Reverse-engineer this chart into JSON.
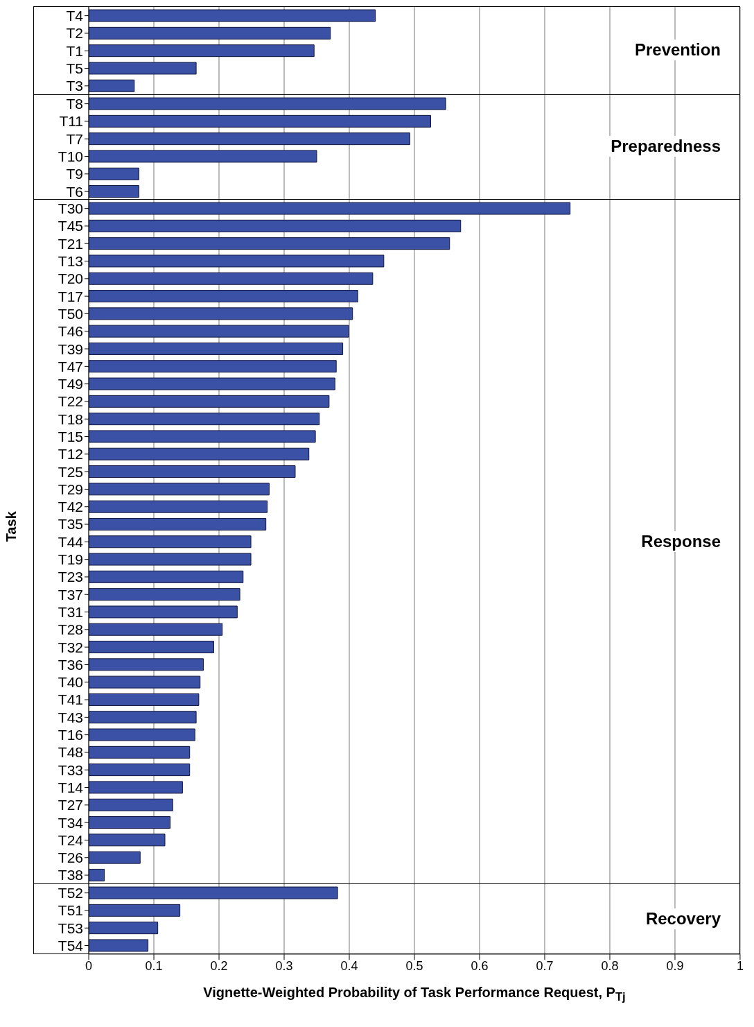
{
  "chart_data": [
    {
      "type": "bar",
      "orientation": "horizontal",
      "categories": [
        "T4",
        "T2",
        "T1",
        "T5",
        "T3"
      ],
      "values": [
        0.44,
        0.371,
        0.346,
        0.165,
        0.07
      ],
      "color": "#3a51a5",
      "xlim": [
        0,
        1
      ],
      "xticks": [
        0,
        0.1,
        0.2,
        0.3,
        0.4,
        0.5,
        0.6,
        0.7,
        0.8,
        0.9,
        1
      ],
      "grid": "x",
      "tick_labels": "y",
      "annotations": [
        "Prevention"
      ]
    },
    {
      "type": "bar",
      "orientation": "horizontal",
      "categories": [
        "T8",
        "T11",
        "T7",
        "T10",
        "T9",
        "T6"
      ],
      "values": [
        0.548,
        0.525,
        0.493,
        0.35,
        0.077,
        0.077
      ],
      "color": "#3a51a5",
      "xlim": [
        0,
        1
      ],
      "xticks": [
        0,
        0.1,
        0.2,
        0.3,
        0.4,
        0.5,
        0.6,
        0.7,
        0.8,
        0.9,
        1
      ],
      "grid": "x",
      "tick_labels": "y",
      "annotations": [
        "Preparedness"
      ]
    },
    {
      "type": "bar",
      "orientation": "horizontal",
      "ylabel": "Task",
      "categories": [
        "T30",
        "T45",
        "T21",
        "T13",
        "T20",
        "T17",
        "T50",
        "T46",
        "T39",
        "T47",
        "T49",
        "T22",
        "T18",
        "T15",
        "T12",
        "T25",
        "T29",
        "T42",
        "T35",
        "T44",
        "T19",
        "T23",
        "T37",
        "T31",
        "T28",
        "T32",
        "T36",
        "T40",
        "T41",
        "T43",
        "T16",
        "T48",
        "T33",
        "T14",
        "T27",
        "T34",
        "T24",
        "T26",
        "T38"
      ],
      "values": [
        0.739,
        0.571,
        0.554,
        0.453,
        0.436,
        0.413,
        0.405,
        0.399,
        0.39,
        0.38,
        0.378,
        0.369,
        0.354,
        0.348,
        0.338,
        0.317,
        0.277,
        0.274,
        0.272,
        0.249,
        0.249,
        0.237,
        0.232,
        0.228,
        0.205,
        0.192,
        0.176,
        0.171,
        0.169,
        0.165,
        0.163,
        0.155,
        0.155,
        0.144,
        0.129,
        0.125,
        0.117,
        0.079,
        0.024
      ],
      "color": "#3a51a5",
      "xlim": [
        0,
        1
      ],
      "xticks": [
        0,
        0.1,
        0.2,
        0.3,
        0.4,
        0.5,
        0.6,
        0.7,
        0.8,
        0.9,
        1
      ],
      "grid": "x",
      "tick_labels": "y",
      "annotations": [
        "Response"
      ]
    },
    {
      "type": "bar",
      "orientation": "horizontal",
      "xlabel": "Vignette-Weighted Probability of Task Performance Request, P$_{Tj}$",
      "categories": [
        "T52",
        "T51",
        "T53",
        "T54"
      ],
      "values": [
        0.382,
        0.14,
        0.106,
        0.091
      ],
      "color": "#3a51a5",
      "xlim": [
        0,
        1
      ],
      "xticks": [
        0,
        0.1,
        0.2,
        0.3,
        0.4,
        0.5,
        0.6,
        0.7,
        0.8,
        0.9,
        1
      ],
      "grid": "x",
      "annotations": [
        "Recovery"
      ]
    }
  ]
}
